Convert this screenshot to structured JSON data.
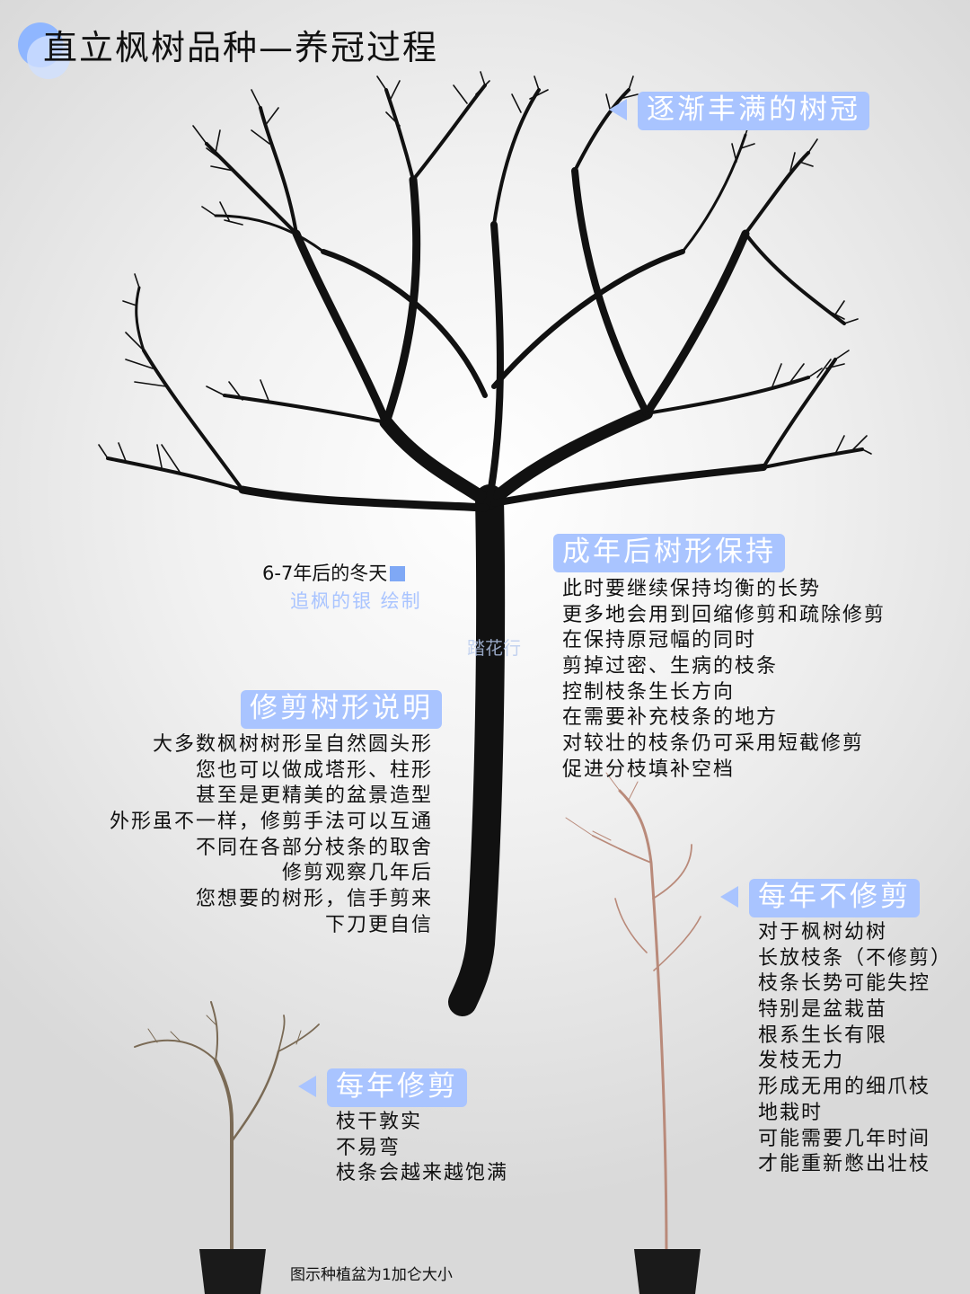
{
  "title": "直立枫树品种—养冠过程",
  "labels": {
    "crown": "逐渐丰满的树冠",
    "adult": "成年后树形保持",
    "pruning": "修剪树形说明",
    "no_prune": "每年不修剪",
    "yearly": "每年修剪"
  },
  "caption": "6-7年后的冬天",
  "credit": "追枫的银 绘制",
  "watermark": "踏花行",
  "adult_lines": [
    "此时要继续保持均衡的长势",
    "更多地会用到回缩修剪和疏除修剪",
    "在保持原冠幅的同时",
    "剪掉过密、生病的枝条",
    "控制枝条生长方向",
    "在需要补充枝条的地方",
    "对较壮的枝条仍可采用短截修剪",
    "促进分枝填补空档"
  ],
  "pruning_lines": [
    "大多数枫树树形呈自然圆头形",
    "您也可以做成塔形、柱形",
    "甚至是更精美的盆景造型",
    "外形虽不一样，修剪手法可以互通",
    "不同在各部分枝条的取舍",
    "修剪观察几年后",
    "您想要的树形，信手剪来",
    "下刀更自信"
  ],
  "no_prune_lines": [
    "对于枫树幼树",
    "长放枝条（不修剪）",
    "枝条长势可能失控",
    "特别是盆栽苗",
    "根系生长有限",
    "发枝无力",
    "形成无用的细爪枝",
    "地栽时",
    "可能需要几年时间",
    "才能重新憋出壮枝"
  ],
  "yearly_lines": [
    "枝干敦实",
    "不易弯",
    "枝条会越来越饱满"
  ],
  "note": "图示种植盆为1加仑大小",
  "colors": {
    "accent": "#a9c4ff",
    "square": "#7fa8f5"
  }
}
